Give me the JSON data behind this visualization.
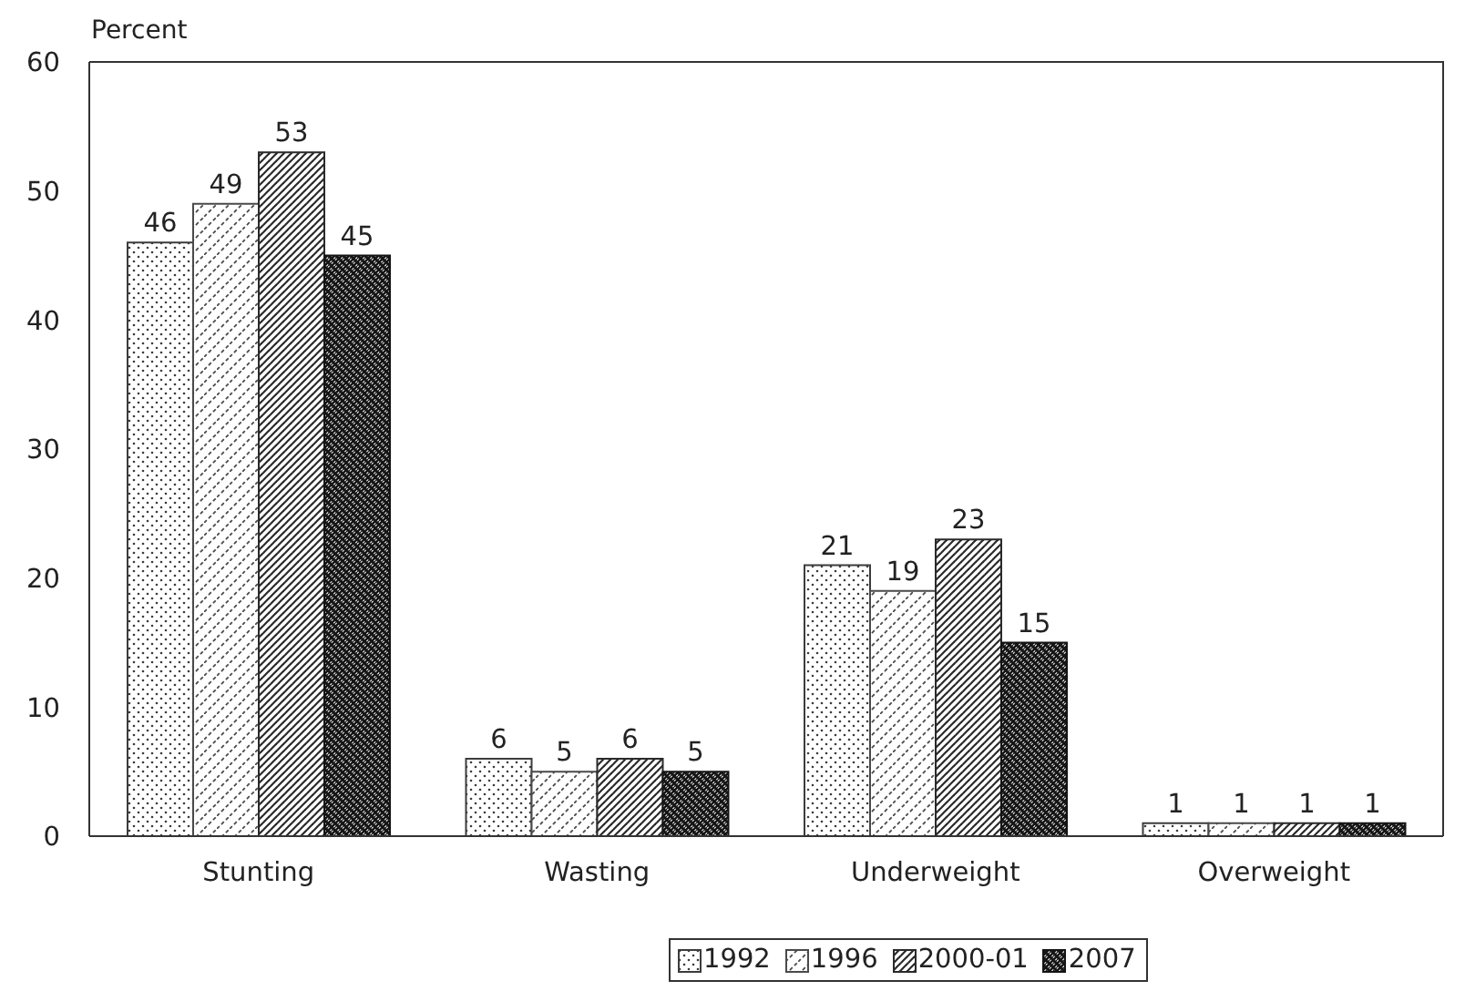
{
  "chart_data": {
    "type": "bar",
    "ylabel": "Percent",
    "categories": [
      "Stunting",
      "Wasting",
      "Underweight",
      "Overweight"
    ],
    "series": [
      {
        "name": "1992",
        "color": "#3c3c3c",
        "values": [
          46,
          6,
          21,
          1
        ]
      },
      {
        "name": "1996",
        "color": "#4a4a4a",
        "values": [
          49,
          5,
          19,
          1
        ]
      },
      {
        "name": "2000-01",
        "color": "#2a2a2a",
        "values": [
          53,
          6,
          23,
          1
        ]
      },
      {
        "name": "2007",
        "color": "#141414",
        "values": [
          45,
          5,
          15,
          1
        ]
      }
    ],
    "ylim": [
      0,
      60
    ],
    "yticks": [
      0,
      10,
      20,
      30,
      40,
      50,
      60
    ],
    "legend": "bottom",
    "data_labels": true
  }
}
